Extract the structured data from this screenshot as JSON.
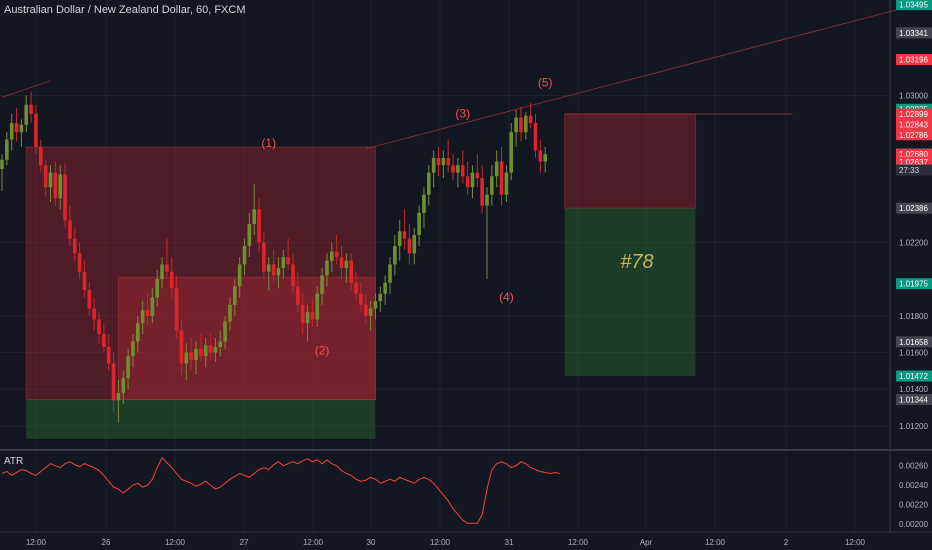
{
  "header": {
    "title": "Australian Dollar / New Zealand Dollar, 60, FXCM"
  },
  "atr_panel": {
    "title": "ATR"
  },
  "colors": {
    "bg": "#131722",
    "up": "#26a69a",
    "down": "#ef5350",
    "up_fill": "#4caf50",
    "down_fill": "#f23645",
    "box_red": "#6e2a2a",
    "box_green": "#1f3d23",
    "atr_line": "#f44336",
    "grid": "#1e2230",
    "label_green": "#089981",
    "label_red": "#f23645",
    "label_gray": "#434651",
    "target_text": "#c9b458"
  },
  "chart_data": {
    "type": "candlestick",
    "title": "Australian Dollar / New Zealand Dollar, 60, FXCM",
    "ylim": [
      1.0108,
      1.0352
    ],
    "x_ticks": [
      "12:00",
      "26",
      "12:00",
      "27",
      "12:00",
      "30",
      "12:00",
      "31",
      "12:00",
      "Apr",
      "12:00",
      "2",
      "12:00"
    ],
    "price_axis_ticks": [
      "1.03000",
      "1.02200",
      "1.01800",
      "1.01600",
      "1.01400",
      "1.01200"
    ],
    "price_labels": [
      {
        "text": "1.03495",
        "value": 1.03495,
        "kind": "green"
      },
      {
        "text": "1.03341",
        "value": 1.03341,
        "kind": "gray"
      },
      {
        "text": "1.03196",
        "value": 1.03196,
        "kind": "red"
      },
      {
        "text": "1.02925",
        "value": 1.02925,
        "kind": "green"
      },
      {
        "text": "1.02899",
        "value": 1.02899,
        "kind": "red"
      },
      {
        "text": "1.02843",
        "value": 1.02843,
        "kind": "red"
      },
      {
        "text": "1.02786",
        "value": 1.02786,
        "kind": "red"
      },
      {
        "text": "1.02681",
        "value": 1.02681,
        "kind": "green"
      },
      {
        "text": "1.02680",
        "value": 1.0268,
        "kind": "red"
      },
      {
        "text": "1.02637",
        "value": 1.02637,
        "kind": "red"
      },
      {
        "text": "1.02386",
        "value": 1.02386,
        "kind": "gray"
      },
      {
        "text": "1.01975",
        "value": 1.01975,
        "kind": "green"
      },
      {
        "text": "1.01658",
        "value": 1.01658,
        "kind": "gray"
      },
      {
        "text": "1.01472",
        "value": 1.01472,
        "kind": "green"
      },
      {
        "text": "1.01344",
        "value": 1.01344,
        "kind": "gray"
      }
    ],
    "countdown_label": "27:33",
    "wave_labels": [
      {
        "text": "(1)",
        "x_index": 55,
        "y": 1.0272
      },
      {
        "text": "(2)",
        "x_index": 66,
        "y": 1.0159
      },
      {
        "text": "(3)",
        "x_index": 95,
        "y": 1.0288
      },
      {
        "text": "(4)",
        "x_index": 104,
        "y": 1.0188
      },
      {
        "text": "(5)",
        "x_index": 112,
        "y": 1.0305
      }
    ],
    "target_label": "#78",
    "boxes": [
      {
        "from_index": 5,
        "to_index": 77,
        "top": 1.0272,
        "bottom": 1.01344,
        "kind": "red"
      },
      {
        "from_index": 24,
        "to_index": 77,
        "top": 1.0201,
        "bottom": 1.01344,
        "kind": "red"
      },
      {
        "from_index": 5,
        "to_index": 77,
        "top": 1.01344,
        "bottom": 1.0113,
        "kind": "green"
      },
      {
        "from_index": 116,
        "to_index": 143,
        "top": 1.02899,
        "bottom": 1.02386,
        "kind": "red"
      },
      {
        "from_index": 116,
        "to_index": 143,
        "top": 1.02386,
        "bottom": 1.01472,
        "kind": "green"
      }
    ],
    "trendlines": [
      {
        "from": [
          0,
          1.0299
        ],
        "to": [
          10,
          1.0308
        ]
      },
      {
        "from": [
          75,
          1.0271
        ],
        "to": [
          185,
          1.0347
        ]
      },
      {
        "from": [
          116,
          1.02899
        ],
        "to": [
          163,
          1.02899
        ]
      }
    ],
    "candles": [
      [
        1.026,
        1.0268,
        1.0248,
        1.0265
      ],
      [
        1.0265,
        1.028,
        1.0262,
        1.0276
      ],
      [
        1.0276,
        1.029,
        1.027,
        1.0285
      ],
      [
        1.0285,
        1.0293,
        1.0275,
        1.028
      ],
      [
        1.028,
        1.0287,
        1.0272,
        1.0284
      ],
      [
        1.0284,
        1.03,
        1.028,
        1.0295
      ],
      [
        1.0295,
        1.0302,
        1.0285,
        1.029
      ],
      [
        1.029,
        1.0295,
        1.0268,
        1.0272
      ],
      [
        1.0272,
        1.0276,
        1.0258,
        1.0262
      ],
      [
        1.0262,
        1.0265,
        1.0245,
        1.025
      ],
      [
        1.025,
        1.0262,
        1.0242,
        1.0258
      ],
      [
        1.0258,
        1.0264,
        1.024,
        1.0244
      ],
      [
        1.0244,
        1.0262,
        1.0238,
        1.0257
      ],
      [
        1.0257,
        1.0263,
        1.0228,
        1.0232
      ],
      [
        1.0232,
        1.024,
        1.0218,
        1.0222
      ],
      [
        1.0222,
        1.0228,
        1.021,
        1.0214
      ],
      [
        1.0214,
        1.022,
        1.02,
        1.0204
      ],
      [
        1.0204,
        1.021,
        1.019,
        1.0194
      ],
      [
        1.0194,
        1.0198,
        1.018,
        1.0184
      ],
      [
        1.0184,
        1.019,
        1.0172,
        1.0178
      ],
      [
        1.0178,
        1.0182,
        1.0165,
        1.017
      ],
      [
        1.017,
        1.0176,
        1.016,
        1.0163
      ],
      [
        1.0163,
        1.017,
        1.015,
        1.0154
      ],
      [
        1.0154,
        1.016,
        1.0128,
        1.0134
      ],
      [
        1.0134,
        1.0145,
        1.0122,
        1.0138
      ],
      [
        1.0138,
        1.015,
        1.0132,
        1.0146
      ],
      [
        1.0146,
        1.0162,
        1.014,
        1.0158
      ],
      [
        1.0158,
        1.017,
        1.0152,
        1.0166
      ],
      [
        1.0166,
        1.018,
        1.016,
        1.0176
      ],
      [
        1.0176,
        1.0188,
        1.017,
        1.0183
      ],
      [
        1.0183,
        1.0192,
        1.0175,
        1.018
      ],
      [
        1.018,
        1.0195,
        1.0176,
        1.019
      ],
      [
        1.019,
        1.0205,
        1.0185,
        1.02
      ],
      [
        1.02,
        1.0212,
        1.0195,
        1.0208
      ],
      [
        1.0208,
        1.0222,
        1.02,
        1.0204
      ],
      [
        1.0204,
        1.0212,
        1.019,
        1.0195
      ],
      [
        1.0195,
        1.0202,
        1.0168,
        1.0172
      ],
      [
        1.0172,
        1.0178,
        1.0148,
        1.0154
      ],
      [
        1.0154,
        1.0165,
        1.0145,
        1.016
      ],
      [
        1.016,
        1.0168,
        1.015,
        1.0156
      ],
      [
        1.0156,
        1.0166,
        1.0148,
        1.0162
      ],
      [
        1.0162,
        1.017,
        1.0155,
        1.0158
      ],
      [
        1.0158,
        1.0168,
        1.0152,
        1.0164
      ],
      [
        1.0164,
        1.017,
        1.0156,
        1.016
      ],
      [
        1.016,
        1.0168,
        1.0155,
        1.0163
      ],
      [
        1.0163,
        1.0172,
        1.0158,
        1.0166
      ],
      [
        1.0166,
        1.018,
        1.0162,
        1.0177
      ],
      [
        1.0177,
        1.019,
        1.0172,
        1.0186
      ],
      [
        1.0186,
        1.02,
        1.018,
        1.0196
      ],
      [
        1.0196,
        1.0212,
        1.019,
        1.0208
      ],
      [
        1.0208,
        1.0222,
        1.0202,
        1.0218
      ],
      [
        1.0218,
        1.0236,
        1.0212,
        1.023
      ],
      [
        1.023,
        1.0252,
        1.0224,
        1.0238
      ],
      [
        1.0238,
        1.0244,
        1.0215,
        1.022
      ],
      [
        1.022,
        1.0226,
        1.02,
        1.0204
      ],
      [
        1.0204,
        1.0212,
        1.0194,
        1.0208
      ],
      [
        1.0208,
        1.0216,
        1.0198,
        1.0202
      ],
      [
        1.0202,
        1.0212,
        1.0195,
        1.0206
      ],
      [
        1.0206,
        1.0216,
        1.02,
        1.0212
      ],
      [
        1.0212,
        1.0222,
        1.0205,
        1.0208
      ],
      [
        1.0208,
        1.0214,
        1.0192,
        1.0196
      ],
      [
        1.0196,
        1.0204,
        1.0182,
        1.0186
      ],
      [
        1.0186,
        1.0192,
        1.017,
        1.0176
      ],
      [
        1.0176,
        1.0186,
        1.0166,
        1.0182
      ],
      [
        1.0182,
        1.019,
        1.0174,
        1.0178
      ],
      [
        1.0178,
        1.0196,
        1.0174,
        1.0192
      ],
      [
        1.0192,
        1.0206,
        1.0186,
        1.0202
      ],
      [
        1.0202,
        1.0214,
        1.0196,
        1.021
      ],
      [
        1.021,
        1.022,
        1.0204,
        1.0215
      ],
      [
        1.0215,
        1.0224,
        1.0208,
        1.0212
      ],
      [
        1.0212,
        1.0218,
        1.02,
        1.0206
      ],
      [
        1.0206,
        1.0214,
        1.0198,
        1.021
      ],
      [
        1.021,
        1.0214,
        1.0194,
        1.0198
      ],
      [
        1.0198,
        1.0204,
        1.0188,
        1.0192
      ],
      [
        1.0192,
        1.0198,
        1.0182,
        1.0186
      ],
      [
        1.0186,
        1.0192,
        1.0176,
        1.018
      ],
      [
        1.018,
        1.0188,
        1.0172,
        1.0184
      ],
      [
        1.0184,
        1.0192,
        1.0178,
        1.0188
      ],
      [
        1.0188,
        1.0196,
        1.0182,
        1.0192
      ],
      [
        1.0192,
        1.0202,
        1.0186,
        1.0198
      ],
      [
        1.0198,
        1.0212,
        1.0192,
        1.0208
      ],
      [
        1.0208,
        1.0224,
        1.0202,
        1.0218
      ],
      [
        1.0218,
        1.0232,
        1.021,
        1.0226
      ],
      [
        1.0226,
        1.0238,
        1.0216,
        1.0222
      ],
      [
        1.0222,
        1.023,
        1.0208,
        1.0214
      ],
      [
        1.0214,
        1.0228,
        1.0208,
        1.0224
      ],
      [
        1.0224,
        1.024,
        1.0218,
        1.0236
      ],
      [
        1.0236,
        1.025,
        1.0228,
        1.0246
      ],
      [
        1.0246,
        1.0262,
        1.024,
        1.0258
      ],
      [
        1.0258,
        1.027,
        1.025,
        1.0266
      ],
      [
        1.0266,
        1.0272,
        1.0256,
        1.0262
      ],
      [
        1.0262,
        1.027,
        1.0255,
        1.0266
      ],
      [
        1.0266,
        1.0276,
        1.0258,
        1.0262
      ],
      [
        1.0262,
        1.0268,
        1.0254,
        1.0258
      ],
      [
        1.0258,
        1.0266,
        1.025,
        1.0262
      ],
      [
        1.0262,
        1.027,
        1.0252,
        1.0256
      ],
      [
        1.0256,
        1.0264,
        1.0246,
        1.025
      ],
      [
        1.025,
        1.0262,
        1.0244,
        1.0258
      ],
      [
        1.0258,
        1.0268,
        1.025,
        1.0255
      ],
      [
        1.0255,
        1.0262,
        1.0236,
        1.024
      ],
      [
        1.024,
        1.025,
        1.02,
        1.0246
      ],
      [
        1.0246,
        1.0262,
        1.024,
        1.0256
      ],
      [
        1.0256,
        1.027,
        1.025,
        1.0264
      ],
      [
        1.0264,
        1.0272,
        1.024,
        1.0246
      ],
      [
        1.0246,
        1.0262,
        1.0242,
        1.0258
      ],
      [
        1.0258,
        1.0285,
        1.0254,
        1.028
      ],
      [
        1.028,
        1.0292,
        1.0272,
        1.0288
      ],
      [
        1.0288,
        1.0294,
        1.0275,
        1.028
      ],
      [
        1.028,
        1.0291,
        1.0276,
        1.0289
      ],
      [
        1.0289,
        1.0296,
        1.0282,
        1.0285
      ],
      [
        1.0285,
        1.029,
        1.0266,
        1.027
      ],
      [
        1.027,
        1.0276,
        1.0258,
        1.0264
      ],
      [
        1.0264,
        1.0272,
        1.0258,
        1.0268
      ]
    ],
    "atr": {
      "title": "ATR",
      "ylim": [
        0.00192,
        0.00274
      ],
      "ticks": [
        "0.00260",
        "0.00240",
        "0.00220",
        "0.00200"
      ],
      "values": [
        0.00252,
        0.00254,
        0.0025,
        0.00253,
        0.00256,
        0.00255,
        0.00252,
        0.0025,
        0.00254,
        0.00258,
        0.00262,
        0.0026,
        0.00258,
        0.00262,
        0.00264,
        0.00261,
        0.00259,
        0.00262,
        0.0026,
        0.00258,
        0.00255,
        0.0025,
        0.00244,
        0.00238,
        0.00236,
        0.00232,
        0.00236,
        0.0024,
        0.00242,
        0.00238,
        0.0024,
        0.00246,
        0.00258,
        0.00268,
        0.00263,
        0.00258,
        0.00252,
        0.00246,
        0.00244,
        0.00242,
        0.00239,
        0.00241,
        0.00244,
        0.0024,
        0.00236,
        0.00238,
        0.00242,
        0.00246,
        0.00249,
        0.00252,
        0.0025,
        0.00248,
        0.00252,
        0.00256,
        0.00258,
        0.00256,
        0.00261,
        0.00264,
        0.0026,
        0.00262,
        0.00264,
        0.00262,
        0.00265,
        0.00267,
        0.00264,
        0.00266,
        0.00262,
        0.00266,
        0.00262,
        0.0026,
        0.00255,
        0.00252,
        0.0025,
        0.00246,
        0.00244,
        0.00245,
        0.00248,
        0.00246,
        0.00242,
        0.00244,
        0.00246,
        0.00244,
        0.00248,
        0.00246,
        0.00244,
        0.00242,
        0.00246,
        0.00248,
        0.00246,
        0.00242,
        0.00236,
        0.0023,
        0.00224,
        0.00216,
        0.0021,
        0.00204,
        0.00201,
        0.00201,
        0.00201,
        0.0021,
        0.00236,
        0.00256,
        0.00262,
        0.00264,
        0.00262,
        0.00258,
        0.0026,
        0.00264,
        0.00262,
        0.00258,
        0.00256,
        0.00254,
        0.00253,
        0.00252,
        0.00253,
        0.00252
      ]
    }
  }
}
